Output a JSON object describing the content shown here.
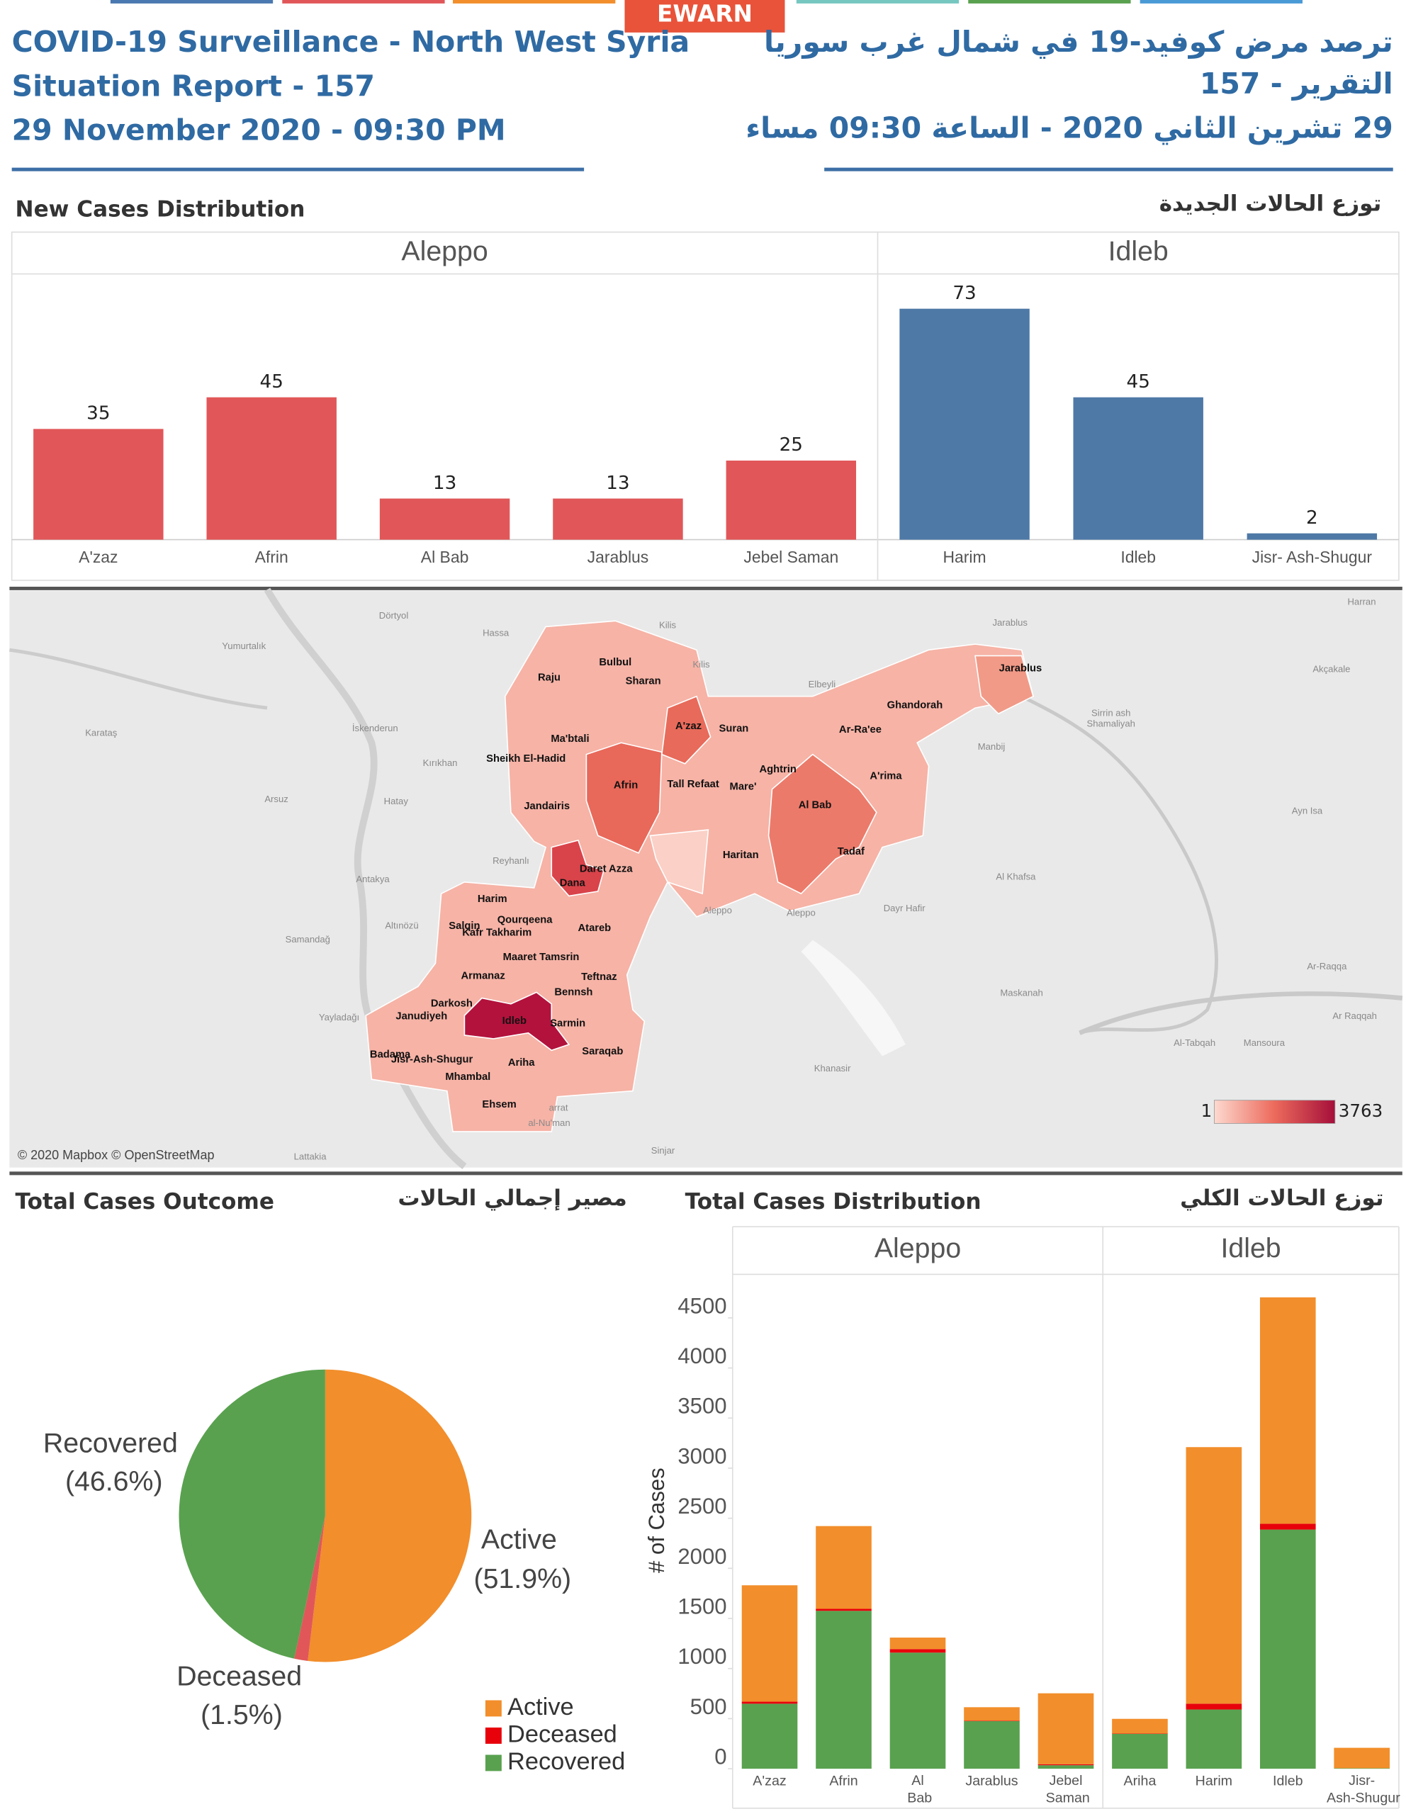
{
  "header": {
    "logo": "EWARN",
    "title": "COVID-19 Surveillance - North West Syria",
    "report": "Situation Report - 157",
    "date": "29 November  2020 - 09:30 PM",
    "title_ar": "ترصد مرض كوفيد-19 في شمال غرب سوريا",
    "report_ar": "التقرير - 157",
    "date_ar": "29 تشرين الثاني 2020  - الساعة 09:30 مساء"
  },
  "sections": {
    "new_cases": "New Cases Distribution",
    "new_cases_ar": "توزع الحالات الجديدة",
    "outcome": "Total Cases Outcome",
    "outcome_ar": "مصير إجمالي الحالات",
    "distribution": "Total Cases Distribution",
    "distribution_ar": "توزع الحالات الكلي"
  },
  "map": {
    "districts": [
      "Raju",
      "Bulbul",
      "Sharan",
      "Ma'btali",
      "Sheikh El-Hadid",
      "A'zaz",
      "Suran",
      "Ar-Ra'ee",
      "Ghandorah",
      "Jarablus",
      "Afrin",
      "Tall Refaat",
      "Aghtrin",
      "Mare'",
      "A'rima",
      "Jandairis",
      "Al Bab",
      "Haritan",
      "Tadaf",
      "Daret Azza",
      "Dana",
      "Harim",
      "Qourqeena",
      "Salqin",
      "Kafr Takharim",
      "Atareb",
      "Maaret Tamsrin",
      "Armanaz",
      "Teftnaz",
      "Bennsh",
      "Darkosh",
      "Janudiyeh",
      "Idleb",
      "Sarmin",
      "Badama",
      "Jisr-Ash-Shugur",
      "Ariha",
      "Saraqab",
      "Mhambal",
      "Ehsem"
    ],
    "places": [
      "Dörtyol",
      "Hassa",
      "Kilis",
      "Kilis",
      "Yumurtalık",
      "Karataş",
      "İskenderun",
      "Kırıkhan",
      "Arsuz",
      "Hatay",
      "Reyhanlı",
      "Antakya",
      "Altınözü",
      "Samandağ",
      "Yayladağı",
      "Elbeyli",
      "Manbij",
      "Aleppo",
      "Aleppo",
      "Al Khafsa",
      "Dayr Hafir",
      "Maskanah",
      "Khanasir",
      "Ar-Raqqa",
      "Ar Raqqah",
      "Al-Tabqah",
      "Mansoura",
      "Ayn Isa",
      "Sirrin ash",
      "Shamaliyah",
      "Akçakale",
      "Harran",
      "Jarablus",
      "Sinjar",
      "Lattakia",
      "arrat",
      "al-Nu'man"
    ],
    "legend": {
      "min": 1,
      "max": 3763
    },
    "credit": "© 2020 Mapbox © OpenStreetMap"
  },
  "chart_data": [
    {
      "type": "bar",
      "panels": [
        {
          "name": "Aleppo",
          "color": "#e15759",
          "categories": [
            "A'zaz",
            "Afrin",
            "Al Bab",
            "Jarablus",
            "Jebel Saman"
          ],
          "values": [
            35,
            45,
            13,
            13,
            25
          ]
        },
        {
          "name": "Idleb",
          "color": "#4e79a7",
          "categories": [
            "Harim",
            "Idleb",
            "Jisr- Ash-Shugur"
          ],
          "values": [
            73,
            45,
            2
          ]
        }
      ]
    },
    {
      "type": "pie",
      "categories": [
        "Active",
        "Deceased",
        "Recovered"
      ],
      "values": [
        51.9,
        1.5,
        46.6
      ],
      "value_labels": [
        "(51.9%)",
        "(1.5%)",
        "(46.6%)"
      ],
      "colors": [
        "#f28e2b",
        "#e15759",
        "#59a14f"
      ]
    },
    {
      "type": "stacked_bar",
      "ylabel": "# of Cases",
      "ylim": [
        0,
        4900
      ],
      "yticks": [
        0,
        500,
        1000,
        1500,
        2000,
        2500,
        3000,
        3500,
        4000,
        4500
      ],
      "panels": [
        {
          "name": "Aleppo",
          "categories": [
            "A'zaz",
            "Afrin",
            "Al Bab",
            "Jarablus",
            "Jebel Saman"
          ]
        },
        {
          "name": "Idleb",
          "categories": [
            "Ariha",
            "Harim",
            "Idleb",
            "Jisr- Ash-Shugur"
          ]
        }
      ],
      "series": [
        {
          "name": "Recovered",
          "color": "#59a14f",
          "values": [
            649,
            1576,
            1159,
            475,
            35,
            348,
            591,
            2387,
            5
          ]
        },
        {
          "name": "Deceased",
          "color": "#e8000b",
          "values": [
            20,
            20,
            35,
            5,
            10,
            3,
            58,
            58,
            0
          ]
        },
        {
          "name": "Active",
          "color": "#f28e2b",
          "values": [
            1162,
            826,
            115,
            134,
            708,
            147,
            2561,
            2260,
            204
          ]
        }
      ]
    }
  ]
}
